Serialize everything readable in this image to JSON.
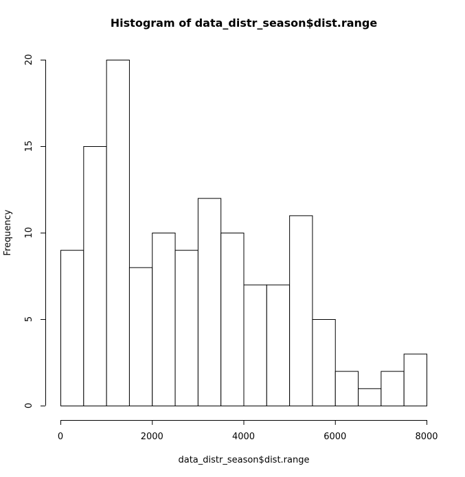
{
  "chart_data": {
    "type": "bar",
    "title": "Histogram of data_distr_season$dist.range",
    "xlabel": "data_distr_season$dist.range",
    "ylabel": "Frequency",
    "bin_edges": [
      0,
      500,
      1000,
      1500,
      2000,
      2500,
      3000,
      3500,
      4000,
      4500,
      5000,
      5500,
      6000,
      6500,
      7000,
      7500,
      8000
    ],
    "values": [
      9,
      15,
      20,
      8,
      10,
      9,
      12,
      10,
      7,
      7,
      11,
      5,
      2,
      1,
      2,
      3
    ],
    "xlim": [
      0,
      8000
    ],
    "ylim": [
      0,
      20
    ],
    "x_ticks": [
      0,
      2000,
      4000,
      6000,
      8000
    ],
    "y_ticks": [
      0,
      5,
      10,
      15,
      20
    ],
    "grid": false,
    "bar_fill": "#ffffff",
    "bar_stroke": "#000000"
  }
}
